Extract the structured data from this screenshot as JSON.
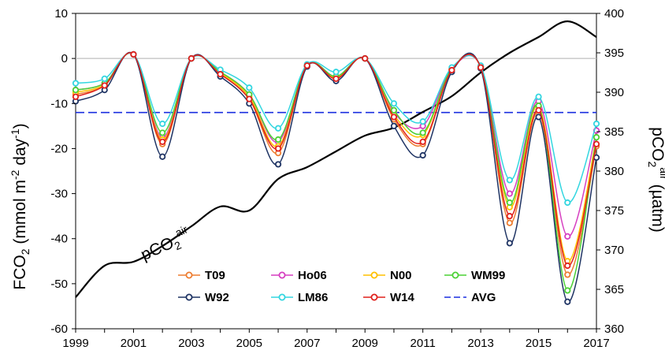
{
  "chart_data": {
    "type": "line",
    "x": [
      1999,
      2000,
      2001,
      2002,
      2003,
      2004,
      2005,
      2006,
      2007,
      2008,
      2009,
      2010,
      2011,
      2012,
      2013,
      2014,
      2015,
      2016,
      2017
    ],
    "xlim": [
      1999,
      2017
    ],
    "x_ticks": [
      "1999",
      "2001",
      "2003",
      "2005",
      "2007",
      "2009",
      "2011",
      "2013",
      "2015",
      "2017"
    ],
    "ylabel_left": {
      "main": "FCO",
      "sub1": "2",
      "mid": " (mmol m",
      "sup": "-2",
      "end": " day",
      "sup2": "-1",
      "close": ")"
    },
    "ylim_left": [
      -60,
      10
    ],
    "y_ticks_left": [
      "10",
      "0",
      "-10",
      "-20",
      "-30",
      "-40",
      "-50",
      "-60"
    ],
    "ylabel_right": {
      "main": "pCO",
      "sub1": "2",
      "sup": "air",
      "end": " (µatm)"
    },
    "ylim_right": [
      360,
      400
    ],
    "y_ticks_right": [
      "400",
      "395",
      "390",
      "385",
      "380",
      "375",
      "370",
      "365",
      "360"
    ],
    "zero_line": 0,
    "series": [
      {
        "name": "T09",
        "color": "#ED7D31",
        "values": [
          -8.0,
          -6.0,
          0.9,
          -19.0,
          0.0,
          -3.5,
          -9.0,
          -21.0,
          -1.5,
          -4.5,
          0.0,
          -13.5,
          -19.0,
          -2.5,
          -2.0,
          -36.5,
          -12.0,
          -48.0,
          -19.5
        ]
      },
      {
        "name": "Ho06",
        "color": "#D63FC1",
        "values": [
          -7.0,
          -5.5,
          0.9,
          -17.5,
          0.0,
          -3.0,
          -8.0,
          -18.5,
          -1.5,
          -4.0,
          0.0,
          -12.0,
          -15.0,
          -2.3,
          -1.8,
          -30.0,
          -9.5,
          -39.5,
          -16.0
        ]
      },
      {
        "name": "N00",
        "color": "#FFC000",
        "values": [
          -7.5,
          -5.8,
          0.9,
          -18.0,
          0.0,
          -3.2,
          -8.5,
          -19.5,
          -1.5,
          -4.2,
          0.0,
          -12.5,
          -17.0,
          -2.4,
          -1.9,
          -33.0,
          -10.5,
          -45.0,
          -17.5
        ]
      },
      {
        "name": "WM99",
        "color": "#4BD135",
        "values": [
          -7.0,
          -5.5,
          0.9,
          -16.5,
          0.0,
          -3.0,
          -8.0,
          -18.0,
          -1.5,
          -4.0,
          0.0,
          -11.5,
          -16.5,
          -2.3,
          -1.8,
          -32.0,
          -10.5,
          -51.5,
          -17.5
        ]
      },
      {
        "name": "W92",
        "color": "#1F3464",
        "values": [
          -9.5,
          -7.0,
          0.9,
          -21.8,
          0.0,
          -4.0,
          -10.0,
          -23.5,
          -1.8,
          -5.0,
          0.0,
          -15.0,
          -21.5,
          -3.0,
          -2.2,
          -41.0,
          -13.0,
          -54.0,
          -22.0
        ]
      },
      {
        "name": "LM86",
        "color": "#33D6E0",
        "values": [
          -5.5,
          -4.5,
          0.9,
          -14.5,
          0.0,
          -2.5,
          -6.5,
          -15.5,
          -1.3,
          -3.0,
          0.0,
          -10.0,
          -14.0,
          -2.0,
          -1.6,
          -27.0,
          -8.5,
          -32.0,
          -14.5
        ]
      },
      {
        "name": "W14",
        "color": "#E0201C",
        "values": [
          -8.5,
          -6.0,
          0.9,
          -18.5,
          0.0,
          -3.5,
          -9.0,
          -20.0,
          -1.6,
          -4.5,
          0.0,
          -13.0,
          -18.5,
          -2.6,
          -2.0,
          -35.0,
          -11.5,
          -46.0,
          -19.0
        ]
      }
    ],
    "avg": {
      "name": "AVG",
      "value": -12.0,
      "color": "#1A2EE0"
    },
    "pco2_air": {
      "label": {
        "main": "pCO",
        "sub": "2",
        "sup": "air"
      },
      "color": "#000000",
      "x": [
        1999,
        2000,
        2001,
        2002,
        2003,
        2004,
        2005,
        2006,
        2007,
        2008,
        2009,
        2010,
        2011,
        2012,
        2013,
        2014,
        2015,
        2016,
        2017
      ],
      "values": [
        364.0,
        368.0,
        368.5,
        370.5,
        373.0,
        375.5,
        375.0,
        379.0,
        380.5,
        382.5,
        384.5,
        385.5,
        387.5,
        389.5,
        392.5,
        395.0,
        397.0,
        399.0,
        397.0
      ]
    },
    "legend": {
      "placement": "bottom-center",
      "order": [
        "T09",
        "Ho06",
        "N00",
        "WM99",
        "W92",
        "LM86",
        "W14",
        "AVG"
      ]
    },
    "grid": false
  }
}
